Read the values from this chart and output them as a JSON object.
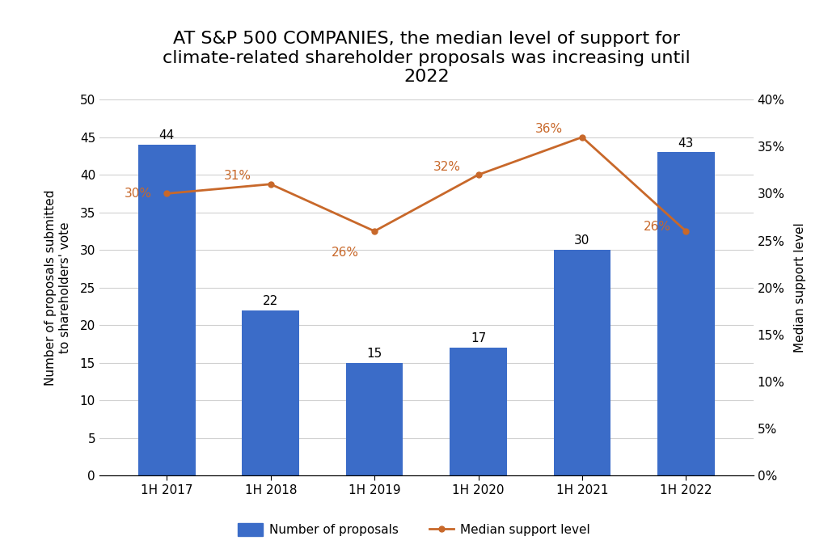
{
  "title": "AT S&P 500 COMPANIES, the median level of support for\nclimate-related shareholder proposals was increasing until\n2022",
  "categories": [
    "1H 2017",
    "1H 2018",
    "1H 2019",
    "1H 2020",
    "1H 2021",
    "1H 2022"
  ],
  "bar_values": [
    44,
    22,
    15,
    17,
    30,
    43
  ],
  "bar_color": "#3B6CC8",
  "line_values": [
    0.3,
    0.31,
    0.26,
    0.32,
    0.36,
    0.26
  ],
  "line_labels": [
    "30%",
    "31%",
    "26%",
    "32%",
    "36%",
    "26%"
  ],
  "bar_labels": [
    "44",
    "22",
    "15",
    "17",
    "30",
    "43"
  ],
  "line_color": "#C8682A",
  "left_ylabel": "Number of proposals submitted\nto shareholders' vote",
  "right_ylabel": "Median support level",
  "left_ylim": [
    0,
    50
  ],
  "right_ylim": [
    0,
    0.4
  ],
  "left_yticks": [
    0,
    5,
    10,
    15,
    20,
    25,
    30,
    35,
    40,
    45,
    50
  ],
  "right_yticks": [
    0.0,
    0.05,
    0.1,
    0.15,
    0.2,
    0.25,
    0.3,
    0.35,
    0.4
  ],
  "right_yticklabels": [
    "0%",
    "5%",
    "10%",
    "15%",
    "20%",
    "25%",
    "30%",
    "35%",
    "40%"
  ],
  "legend_bar_label": "Number of proposals",
  "legend_line_label": "Median support level",
  "background_color": "#FFFFFF",
  "title_fontsize": 16,
  "label_fontsize": 11,
  "tick_fontsize": 11,
  "legend_fontsize": 11,
  "bar_width": 0.55
}
